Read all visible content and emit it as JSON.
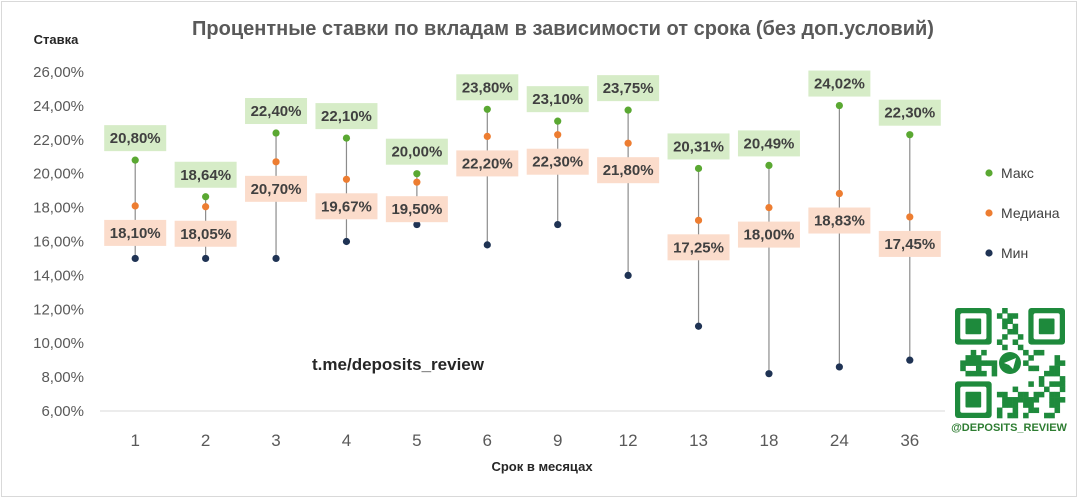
{
  "chart_data": {
    "type": "scatter",
    "title": "Процентные ставки по вкладам в зависимости от срока (без доп.условий)",
    "ylabel": "Ставка",
    "xlabel": "Срок в месяцах",
    "categories": [
      "1",
      "2",
      "3",
      "4",
      "5",
      "6",
      "9",
      "12",
      "13",
      "18",
      "24",
      "36"
    ],
    "ylim": [
      6,
      26
    ],
    "yticks": [
      6,
      8,
      10,
      12,
      14,
      16,
      18,
      20,
      22,
      24,
      26
    ],
    "ytick_labels": [
      "6,00%",
      "8,00%",
      "10,00%",
      "12,00%",
      "14,00%",
      "16,00%",
      "18,00%",
      "20,00%",
      "22,00%",
      "24,00%",
      "26,00%"
    ],
    "legend_position": "right",
    "series": [
      {
        "name": "Макс",
        "color": "#5aa832",
        "label_bg": "#d6ecc7",
        "values": [
          20.8,
          18.64,
          22.4,
          22.1,
          20.0,
          23.8,
          23.1,
          23.75,
          20.31,
          20.49,
          24.02,
          22.3
        ],
        "labels": [
          "20,80%",
          "18,64%",
          "22,40%",
          "22,10%",
          "20,00%",
          "23,80%",
          "23,10%",
          "23,75%",
          "20,31%",
          "20,49%",
          "24,02%",
          "22,30%"
        ]
      },
      {
        "name": "Медиана",
        "color": "#ed7d31",
        "label_bg": "#fbdccb",
        "values": [
          18.1,
          18.05,
          20.7,
          19.67,
          19.5,
          22.2,
          22.3,
          21.8,
          17.25,
          18.0,
          18.83,
          17.45
        ],
        "labels": [
          "18,10%",
          "18,05%",
          "20,70%",
          "19,67%",
          "19,50%",
          "22,20%",
          "22,30%",
          "21,80%",
          "17,25%",
          "18,00%",
          "18,83%",
          "17,45%"
        ]
      },
      {
        "name": "Мин",
        "color": "#1f3354",
        "values": [
          15.0,
          15.0,
          15.0,
          16.0,
          17.0,
          15.8,
          17.0,
          14.0,
          11.0,
          8.2,
          8.6,
          9.0
        ]
      }
    ],
    "annotation": "t.me/deposits_review",
    "line_color": "#8c8c8c"
  },
  "branding": {
    "qr_label": "@DEPOSITS_REVIEW",
    "qr_color": "#1e8a3c"
  }
}
